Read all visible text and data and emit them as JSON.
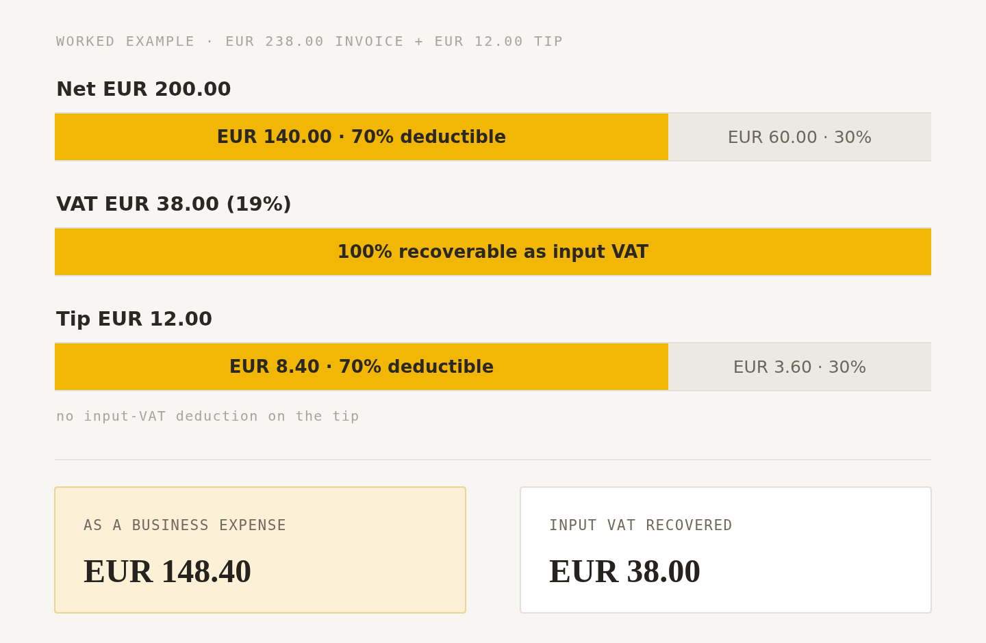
{
  "chart_data": [
    {
      "type": "bar",
      "orientation": "horizontal",
      "stacked": true,
      "title": "WORKED EXAMPLE · EUR 238.00 INVOICE + EUR 12.00 TIP",
      "categories": [
        "Net EUR 200.00",
        "VAT EUR 38.00 (19%)",
        "Tip EUR 12.00"
      ],
      "series": [
        {
          "color": "#f2b705",
          "values": [
            70,
            100,
            70
          ],
          "value_labels": [
            "EUR 140.00 · 70% deductible",
            "100% recoverable as input VAT",
            "EUR 8.40 · 70% deductible"
          ]
        },
        {
          "color": "#ece9e2",
          "values": [
            30,
            null,
            30
          ],
          "value_labels": [
            "EUR 60.00 · 30%",
            null,
            "EUR 3.60 · 30%"
          ]
        }
      ],
      "annotations": [
        "no input-VAT deduction on the tip"
      ]
    },
    {
      "type": "other",
      "title": "AS A BUSINESS EXPENSE",
      "annotations": [
        "EUR 148.40"
      ]
    },
    {
      "type": "other",
      "title": "INPUT VAT RECOVERED",
      "annotations": [
        "EUR 38.00"
      ]
    }
  ]
}
